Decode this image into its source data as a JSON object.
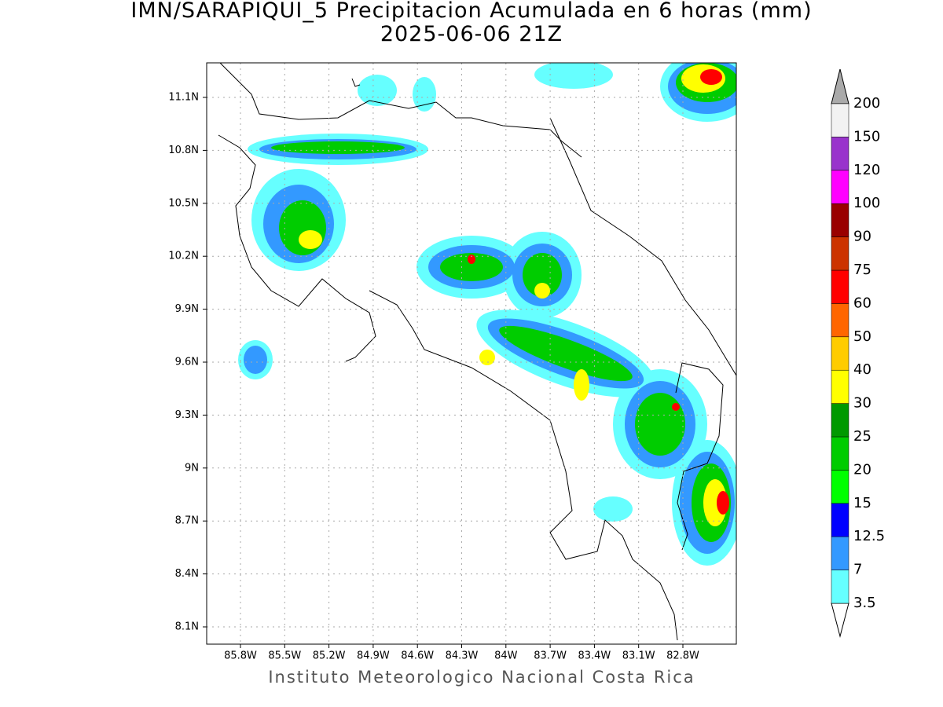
{
  "title": "IMN/SARAPIQUI_5 Precipitacion Acumulada en 6 horas (mm)",
  "subtitle": "2025-06-06 21Z",
  "map": {
    "lat_labels": [
      "11.1N",
      "10.8N",
      "10.5N",
      "10.2N",
      "9.9N",
      "9.6N",
      "9.3N",
      "9N",
      "8.7N",
      "8.4N",
      "8.1N"
    ],
    "lon_labels": [
      "85.8W",
      "85.5W",
      "85.2W",
      "84.9W",
      "84.6W",
      "84.3W",
      "84W",
      "83.7W",
      "83.4W",
      "83.1W",
      "82.8W"
    ]
  },
  "colorbar": {
    "levels": [
      3.5,
      7,
      12.5,
      15,
      20,
      25,
      30,
      40,
      50,
      60,
      75,
      90,
      100,
      120,
      150,
      200
    ],
    "colors": [
      "#66ffff",
      "#3399ff",
      "#0000ff",
      "#00ff00",
      "#00cc00",
      "#009900",
      "#ffff00",
      "#ffcc00",
      "#ff6600",
      "#ff0000",
      "#cc3300",
      "#990000",
      "#ff00ff",
      "#9933cc",
      "#f2f2f2"
    ]
  },
  "footer": "Instituto Meteorologico Nacional Costa Rica"
}
